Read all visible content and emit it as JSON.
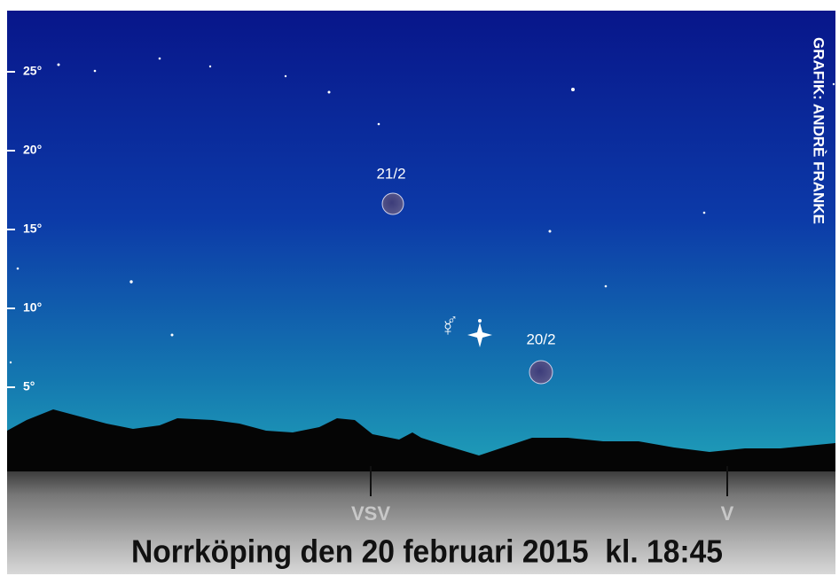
{
  "altitude_labels": [
    "25°",
    "20°",
    "15°",
    "10°",
    "5°"
  ],
  "moon_labels": [
    "21/2",
    "20/2"
  ],
  "planet_symbols": [
    "☿",
    "♂"
  ],
  "compass_labels": [
    "VSV",
    "V"
  ],
  "caption": "Norrköping den 20 februari 2015  kl. 18:45",
  "credit": "GRAFIK: ANDRÈ FRANKE"
}
